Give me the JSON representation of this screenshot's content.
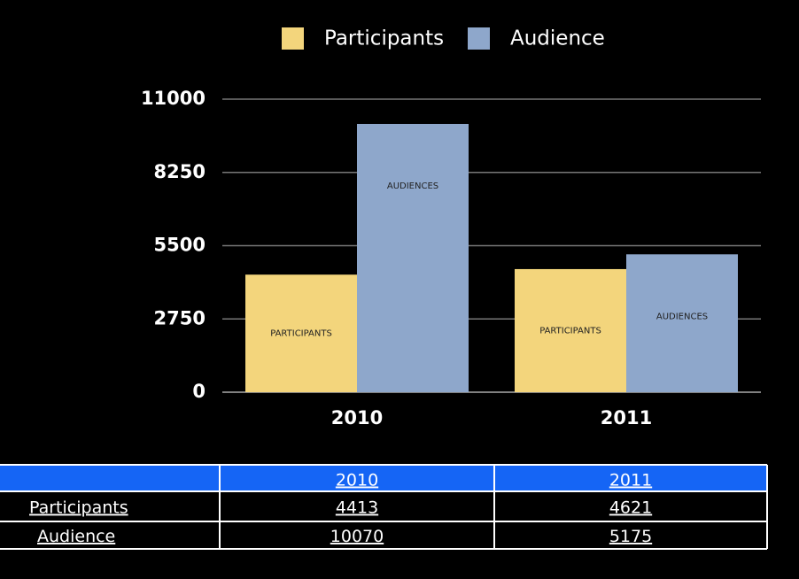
{
  "chart_data": {
    "type": "bar",
    "categories": [
      "2010",
      "2011"
    ],
    "series": [
      {
        "name": "Participants",
        "color": "#f3d57c",
        "bar_label": "PARTICIPANTS",
        "values": [
          4413,
          4621
        ]
      },
      {
        "name": "Audience",
        "color": "#8ea7cb",
        "bar_label": "AUDIENCES",
        "values": [
          10070,
          5175
        ]
      }
    ],
    "ylim": [
      0,
      11000
    ],
    "yticks": [
      0,
      2750,
      5500,
      8250,
      11000
    ],
    "grid": true,
    "legend": "top",
    "table": true,
    "table_header_color": "#1565f5"
  }
}
